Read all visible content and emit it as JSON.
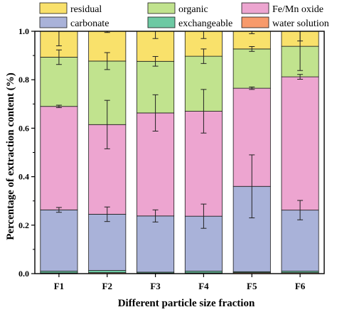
{
  "chart_data": {
    "type": "bar",
    "stacked": true,
    "normalized": true,
    "title": "",
    "xlabel": "Different particle size fraction",
    "ylabel": "Percentage of extraction content (%)",
    "ylim": [
      0,
      1.0
    ],
    "yticks": [
      "0.0",
      "0.2",
      "0.4",
      "0.6",
      "0.8",
      "1.0"
    ],
    "categories": [
      "F1",
      "F2",
      "F3",
      "F4",
      "F5",
      "F6"
    ],
    "grid": false,
    "legend_position": "top",
    "series": [
      {
        "name": "water solution",
        "color": "#f79a6b",
        "values": [
          0.003,
          0.004,
          0.002,
          0.003,
          0.004,
          0.004
        ]
      },
      {
        "name": "exchangeable",
        "color": "#6dc9a3",
        "values": [
          0.007,
          0.009,
          0.004,
          0.007,
          0.004,
          0.006
        ]
      },
      {
        "name": "carbonate",
        "color": "#a9b2d9",
        "values": [
          0.253,
          0.232,
          0.232,
          0.227,
          0.352,
          0.252
        ]
      },
      {
        "name": "Fe/Mn oxide",
        "color": "#eda5d0",
        "values": [
          0.427,
          0.37,
          0.425,
          0.433,
          0.405,
          0.55
        ]
      },
      {
        "name": "organic",
        "color": "#c1e38e",
        "values": [
          0.203,
          0.262,
          0.213,
          0.227,
          0.162,
          0.126
        ]
      },
      {
        "name": "residual",
        "color": "#f9e16b",
        "values": [
          0.107,
          0.123,
          0.124,
          0.103,
          0.073,
          0.062
        ]
      }
    ],
    "error_bars": {
      "top_of": [
        "Fe/Mn oxide",
        "carbonate",
        "organic",
        "residual"
      ],
      "carbonate": [
        0.01,
        0.03,
        0.025,
        0.05,
        0.13,
        0.04
      ],
      "Fe/Mn oxide": [
        0.005,
        0.1,
        0.075,
        0.09,
        0.005,
        0.01
      ],
      "organic": [
        0.03,
        0.035,
        0.02,
        0.03,
        0.01,
        0.1
      ],
      "residual": [
        0.06,
        0.005,
        0.03,
        0.03,
        0.01,
        0.04
      ]
    },
    "legend_layout": [
      [
        "residual",
        "organic",
        "Fe/Mn oxide"
      ],
      [
        "carbonate",
        "exchangeable",
        "water solution"
      ]
    ]
  }
}
